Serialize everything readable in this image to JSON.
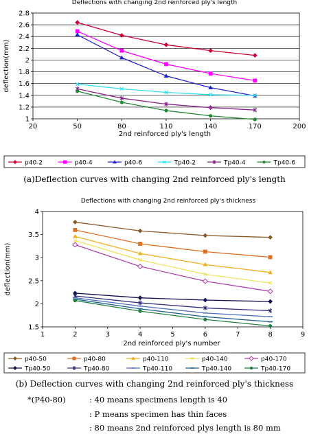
{
  "chart_data": [
    {
      "type": "line",
      "title": "Deflections with changing 2nd reinforced ply's length",
      "xlabel": "2nd reinforced ply's length",
      "ylabel": "deflection(mm)",
      "xlim": [
        20,
        200
      ],
      "ylim": [
        1,
        2.8
      ],
      "xticks": [
        20,
        50,
        80,
        110,
        140,
        170,
        200
      ],
      "yticks": [
        1,
        1.2,
        1.4,
        1.6,
        1.8,
        2,
        2.2,
        2.4,
        2.6,
        2.8
      ],
      "grid": true,
      "legend_position": "bottom",
      "x": [
        50,
        80,
        110,
        140,
        170
      ],
      "series": [
        {
          "name": "p40-2",
          "color": "#cc0033",
          "marker": "diamond",
          "values": [
            2.64,
            2.42,
            2.26,
            2.16,
            2.08
          ]
        },
        {
          "name": "p40-4",
          "color": "#ff00ff",
          "marker": "square",
          "values": [
            2.49,
            2.16,
            1.93,
            1.77,
            1.65
          ]
        },
        {
          "name": "p40-6",
          "color": "#2222cc",
          "marker": "triangle",
          "values": [
            2.43,
            2.04,
            1.73,
            1.53,
            1.39
          ]
        },
        {
          "name": "Tp40-2",
          "color": "#33ddee",
          "marker": "x",
          "values": [
            1.59,
            1.51,
            1.45,
            1.41,
            1.4
          ]
        },
        {
          "name": "Tp40-4",
          "color": "#882288",
          "marker": "star",
          "values": [
            1.51,
            1.35,
            1.25,
            1.19,
            1.15
          ]
        },
        {
          "name": "Tp40-6",
          "color": "#228833",
          "marker": "circle",
          "values": [
            1.47,
            1.28,
            1.14,
            1.05,
            0.99
          ]
        }
      ]
    },
    {
      "type": "line",
      "title": "Deflections with changing 2nd reinforced ply's thickness",
      "xlabel": "2nd reinforced ply's number",
      "ylabel": "deflection(mm)",
      "xlim": [
        1,
        9
      ],
      "ylim": [
        1.5,
        4
      ],
      "xticks": [
        1,
        2,
        3,
        4,
        5,
        6,
        7,
        8,
        9
      ],
      "yticks": [
        1.5,
        2,
        2.5,
        3,
        3.5,
        4
      ],
      "grid": false,
      "legend_position": "bottom",
      "x": [
        2,
        4,
        6,
        8
      ],
      "series": [
        {
          "name": "p40-50",
          "color": "#8b5a2b",
          "marker": "diamond",
          "values": [
            3.77,
            3.58,
            3.48,
            3.44
          ]
        },
        {
          "name": "p40-80",
          "color": "#e07020",
          "marker": "square",
          "values": [
            3.6,
            3.3,
            3.13,
            3.01
          ]
        },
        {
          "name": "p40-110",
          "color": "#f0b020",
          "marker": "triangle",
          "values": [
            3.46,
            3.09,
            2.85,
            2.68
          ]
        },
        {
          "name": "p40-140",
          "color": "#f0e060",
          "marker": "x",
          "values": [
            3.37,
            2.95,
            2.64,
            2.45
          ]
        },
        {
          "name": "p40-170",
          "color": "#b040b0",
          "marker": "diamond-open",
          "values": [
            3.28,
            2.81,
            2.49,
            2.27
          ]
        },
        {
          "name": "Tp40-50",
          "color": "#101050",
          "marker": "diamond",
          "values": [
            2.23,
            2.13,
            2.08,
            2.05
          ]
        },
        {
          "name": "Tp40-80",
          "color": "#303080",
          "marker": "star",
          "values": [
            2.17,
            2.02,
            1.91,
            1.85
          ]
        },
        {
          "name": "Tp40-110",
          "color": "#5070c0",
          "marker": "dash",
          "values": [
            2.13,
            1.95,
            1.8,
            1.72
          ]
        },
        {
          "name": "Tp40-140",
          "color": "#206090",
          "marker": "dash",
          "values": [
            2.1,
            1.89,
            1.72,
            1.61
          ]
        },
        {
          "name": "Tp40-170",
          "color": "#208040",
          "marker": "circle",
          "values": [
            2.07,
            1.84,
            1.66,
            1.52
          ]
        }
      ]
    }
  ],
  "captions": {
    "a": "(a)Deflection curves with changing 2nd reinforced ply's length",
    "b": "(b) Deflection curves with changing 2nd reinforced ply's thickness",
    "note_label": "*(P40-80)",
    "note_1": ": 40 means specimens length is 40",
    "note_2": ": P means specimen has thin faces",
    "note_3": ": 80 means 2nd reinforced plys length is 80 mm"
  }
}
